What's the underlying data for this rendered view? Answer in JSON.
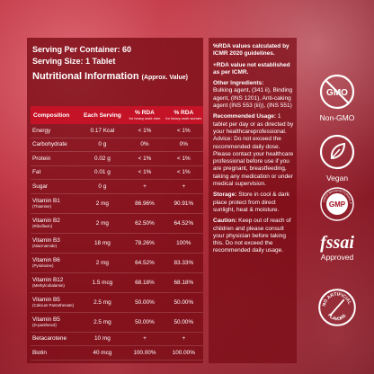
{
  "header": {
    "servings": "Serving Per Container: 60",
    "size": "Serving Size: 1 Tablet",
    "nutritional_title": "Nutritional Information",
    "nutritional_sub": "(Approx. Value)"
  },
  "table": {
    "col_composition": "Composition",
    "col_each": "Each Serving",
    "col_rda_men": "% RDA",
    "col_rda_men_sub": "for heavy work men",
    "col_rda_women": "% RDA",
    "col_rda_women_sub": "for heavy work women",
    "rows": [
      {
        "name": "Energy",
        "sub": "",
        "amount": "0.17 Kcal",
        "men": "< 1%",
        "women": "< 1%"
      },
      {
        "name": "Carbohydrate",
        "sub": "",
        "amount": "0 g",
        "men": "0%",
        "women": "0%"
      },
      {
        "name": "Protein",
        "sub": "",
        "amount": "0.02 g",
        "men": "< 1%",
        "women": "< 1%"
      },
      {
        "name": "Fat",
        "sub": "",
        "amount": "0.01 g",
        "men": "< 1%",
        "women": "< 1%"
      },
      {
        "name": "Sugar",
        "sub": "",
        "amount": "0 g",
        "men": "+",
        "women": "+"
      },
      {
        "name": "Vitamin B1",
        "sub": "(Thiamine)",
        "amount": "2 mg",
        "men": "86.96%",
        "women": "90.91%"
      },
      {
        "name": "Vitamin B2",
        "sub": "(Riboflavin)",
        "amount": "2 mg",
        "men": "62.50%",
        "women": "64.52%"
      },
      {
        "name": "Vitamin B3",
        "sub": "(Niacinamide)",
        "amount": "18 mg",
        "men": "78.26%",
        "women": "100%"
      },
      {
        "name": "Vitamin B6",
        "sub": "(Pyridoxine)",
        "amount": "2 mg",
        "men": "64.52%",
        "women": "83.33%"
      },
      {
        "name": "Vitamin B12",
        "sub": "(Methylcobalamin)",
        "amount": "1.5 mcg",
        "men": "68.18%",
        "women": "68.18%"
      },
      {
        "name": "Vitamin B5",
        "sub": "(Calcium Pantothenate)",
        "amount": "2.5 mg",
        "men": "50.00%",
        "women": "50.00%"
      },
      {
        "name": "Vitamin B5",
        "sub": "(D-panthenol)",
        "amount": "2.5 mg",
        "men": "50.00%",
        "women": "50.00%"
      },
      {
        "name": "Betacarotene",
        "sub": "",
        "amount": "10 mg",
        "men": "+",
        "women": "+"
      },
      {
        "name": "Biotin",
        "sub": "",
        "amount": "40 mcg",
        "men": "100.00%",
        "women": "100.00%"
      }
    ]
  },
  "right": {
    "rda_note_1": "%RDA values calculated by ICMR 2020 guidelines.",
    "rda_note_2": "+RDA value not established as per ICMR.",
    "other_title": "Other Ingredients:",
    "other_text": "Bulking agent, (341 ii), Binding agent, (INS 1201), Anti-caking agent (INS 553 (iii)), (INS 551)",
    "usage_title": "Recommended Usage:",
    "usage_text": "1 tablet per day or as directed by your healthcareprofessional. Advice: Do not exceed the recommended daily dose. Please contact your healthcare professional before use if you are pregnant, breastfeeding, taking any medication or under medical supervision.",
    "storage_title": "Storage:",
    "storage_text": "Store in cool & dark place protect from direct sunlight, heat & moisture.",
    "caution_title": "Caution:",
    "caution_text": "Keep out of reach of children and please consult your physician before taking this. Do not exceed the recommended daily usage."
  },
  "badges": {
    "gmo_icon_text": "GMO",
    "non_gmo": "Non-GMO",
    "vegan": "Vegan",
    "gmp_ring": "GOOD MANUFACTURING PRACTICE",
    "gmp_text": "GMP",
    "fssai": "fssai",
    "fssai_label": "Approved",
    "no_art_1": "NO ARTIFICIAL",
    "no_art_2": "FLAVORS"
  },
  "colors": {
    "accent": "#c41226",
    "panel": "#7a0a14"
  }
}
